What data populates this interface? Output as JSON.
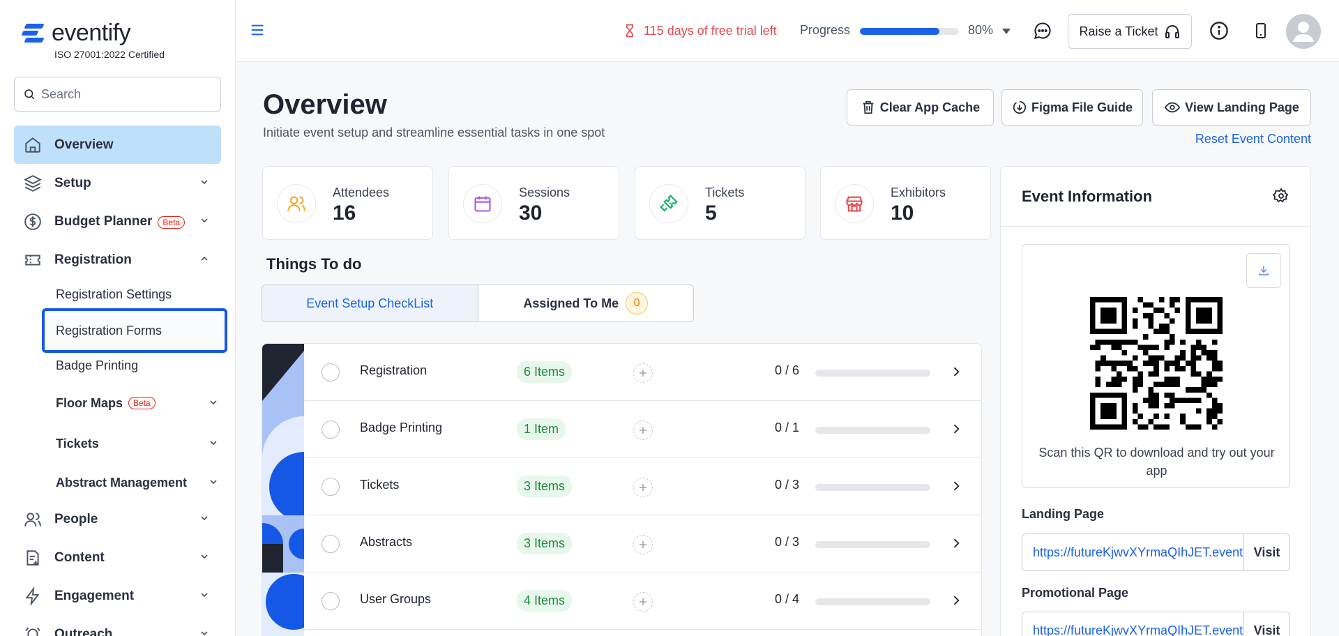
{
  "brand": {
    "name": "eventify",
    "certification": "ISO 27001:2022 Certified",
    "accent": "#1a62e8"
  },
  "sidebar": {
    "search_placeholder": "Search",
    "items": [
      {
        "label": "Overview"
      },
      {
        "label": "Setup"
      },
      {
        "label": "Budget Planner",
        "badge": "Beta"
      },
      {
        "label": "Registration"
      },
      {
        "label": "People"
      },
      {
        "label": "Content"
      },
      {
        "label": "Engagement"
      },
      {
        "label": "Outreach"
      }
    ],
    "registration_sub": [
      {
        "label": "Registration Settings"
      },
      {
        "label": "Registration Forms"
      },
      {
        "label": "Badge Printing"
      },
      {
        "label": "Floor Maps",
        "badge": "Beta"
      },
      {
        "label": "Tickets"
      },
      {
        "label": "Abstract Management"
      }
    ]
  },
  "header": {
    "trial_text": "115 days of free trial left",
    "progress_label": "Progress",
    "progress_value": 0.8,
    "progress_pct": "80%",
    "ticket_button": "Raise a Ticket"
  },
  "main": {
    "title": "Overview",
    "subtitle": "Initiate event setup and streamline essential tasks in one spot",
    "actions": {
      "clear_cache": "Clear App Cache",
      "figma_guide": "Figma File Guide",
      "landing_page": "View Landing Page",
      "reset": "Reset Event Content"
    },
    "stats": [
      {
        "label": "Attendees",
        "value": "16",
        "icon": "users-icon",
        "color": "#f5a524"
      },
      {
        "label": "Sessions",
        "value": "30",
        "icon": "calendar-icon",
        "color": "#a259f0"
      },
      {
        "label": "Tickets",
        "value": "5",
        "icon": "ticket-icon",
        "color": "#17b26a"
      },
      {
        "label": "Exhibitors",
        "value": "10",
        "icon": "store-icon",
        "color": "#e5484d"
      }
    ],
    "todo_title": "Things To do",
    "tabs": {
      "checklist": "Event Setup CheckList",
      "assigned": "Assigned To Me",
      "assigned_count": "0"
    },
    "checklist": [
      {
        "name": "Registration",
        "items": "6 Items",
        "count": "0 / 6",
        "progress": 0
      },
      {
        "name": "Badge Printing",
        "items": "1 Item",
        "count": "0 / 1",
        "progress": 0
      },
      {
        "name": "Tickets",
        "items": "3 Items",
        "count": "0 / 3",
        "progress": 0
      },
      {
        "name": "Abstracts",
        "items": "3 Items",
        "count": "0 / 3",
        "progress": 0
      },
      {
        "name": "User Groups",
        "items": "4 Items",
        "count": "0 / 4",
        "progress": 0
      }
    ]
  },
  "event_info": {
    "title": "Event Information",
    "qr_caption": "Scan this QR to download and try out your app",
    "landing_label": "Landing Page",
    "landing_url": "https://futureKjwvXYrmaQIhJET.eventify.io",
    "promo_label": "Promotional Page",
    "promo_url": "https://futureKjwvXYrmaQIhJET.eventify.io",
    "visit": "Visit"
  }
}
